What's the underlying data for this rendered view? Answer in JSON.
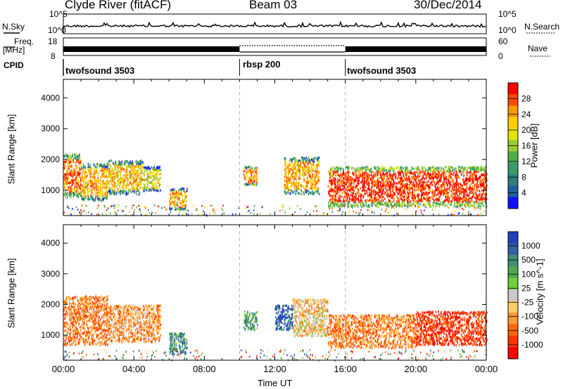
{
  "header": {
    "station": "Clyde River (fitACF)",
    "beam": "Beam 03",
    "date": "30/Dec/2014"
  },
  "strips": {
    "nsky_label": "N.Sky",
    "nsearch_label": "N.Search",
    "nsky_ticks": [
      "10^5",
      "10^0"
    ],
    "nsearch_ticks": [
      "10^5",
      "10^0"
    ],
    "freq_label_line1": "Freq.",
    "freq_label_line2": "[MHz]",
    "freq_ticks": [
      "18",
      "8"
    ],
    "nave_label": "Nave",
    "nave_ticks": [
      "60",
      "0"
    ],
    "cpid_label": "CPID",
    "cpid_segments": [
      "twofsound 3503",
      "rbsp 200",
      "twofsound 3503"
    ],
    "cpid_boundaries_hours": [
      0,
      10,
      16,
      24
    ]
  },
  "time_axis": {
    "label": "Time UT",
    "ticks": [
      "00:00",
      "04:00",
      "08:00",
      "12:00",
      "16:00",
      "20:00",
      "00:00"
    ]
  },
  "chart_data": [
    {
      "type": "heatmap",
      "name": "Power",
      "title": "",
      "xlabel": "Time UT",
      "ylabel": "Slant Range [km]",
      "colorbar_label": "Power [dB]",
      "xlim": [
        0,
        24
      ],
      "ylim": [
        180,
        4600
      ],
      "y_ticks": [
        1000,
        2000,
        3000,
        4000
      ],
      "colorbar_ticks": [
        "28",
        "24",
        "20",
        "16",
        "12",
        "8",
        "4"
      ],
      "colorbar_colors": [
        "#ff0000",
        "#ff4a00",
        "#ff9900",
        "#ffcc00",
        "#e4e400",
        "#9acd32",
        "#4daf4a",
        "#3a9a6a",
        "#2f7f7f",
        "#1f5f9f",
        "#1010ff"
      ],
      "regions": [
        {
          "t": [
            0.0,
            1.0
          ],
          "r": [
            800,
            2200
          ],
          "level": 0.85
        },
        {
          "t": [
            1.0,
            2.5
          ],
          "r": [
            700,
            1900
          ],
          "level": 0.75
        },
        {
          "t": [
            2.5,
            4.5
          ],
          "r": [
            900,
            2000
          ],
          "level": 0.7
        },
        {
          "t": [
            4.5,
            5.5
          ],
          "r": [
            1000,
            1800
          ],
          "level": 0.6
        },
        {
          "t": [
            6.0,
            7.0
          ],
          "r": [
            400,
            1100
          ],
          "level": 0.7
        },
        {
          "t": [
            10.2,
            11.0
          ],
          "r": [
            1200,
            1800
          ],
          "level": 0.8
        },
        {
          "t": [
            12.5,
            14.5
          ],
          "r": [
            900,
            2100
          ],
          "level": 0.75
        },
        {
          "t": [
            15.0,
            24.0
          ],
          "r": [
            500,
            1800
          ],
          "level": 0.95
        }
      ]
    },
    {
      "type": "heatmap",
      "name": "Velocity",
      "title": "",
      "xlabel": "Time UT",
      "ylabel": "Slant Range [km]",
      "colorbar_label": "Velocity [m s^-1]",
      "xlim": [
        0,
        24
      ],
      "ylim": [
        180,
        4600
      ],
      "y_ticks": [
        1000,
        2000,
        3000,
        4000
      ],
      "colorbar_ticks": [
        "1000",
        "500",
        "100",
        "25",
        "-25",
        "-100",
        "-500",
        "-1000"
      ],
      "colorbar_colors": [
        "#2040c0",
        "#3060a0",
        "#3f8f6f",
        "#4fa84f",
        "#6fcf3f",
        "#c8c8c8",
        "#ffcc66",
        "#ff9933",
        "#ff6600",
        "#ff3300",
        "#ff0000"
      ],
      "regions": [
        {
          "t": [
            0.0,
            2.5
          ],
          "r": [
            700,
            2300
          ],
          "level": -0.5
        },
        {
          "t": [
            2.5,
            5.5
          ],
          "r": [
            800,
            2000
          ],
          "level": -0.4
        },
        {
          "t": [
            6.0,
            7.0
          ],
          "r": [
            400,
            1100
          ],
          "level": 0.6
        },
        {
          "t": [
            10.2,
            11.0
          ],
          "r": [
            1200,
            1800
          ],
          "level": 0.5
        },
        {
          "t": [
            12.0,
            13.0
          ],
          "r": [
            1200,
            2000
          ],
          "level": 0.9
        },
        {
          "t": [
            13.0,
            15.0
          ],
          "r": [
            1000,
            2200
          ],
          "level": -0.2
        },
        {
          "t": [
            15.0,
            20.0
          ],
          "r": [
            600,
            1700
          ],
          "level": -0.5
        },
        {
          "t": [
            20.0,
            24.0
          ],
          "r": [
            700,
            1800
          ],
          "level": -0.8
        }
      ]
    }
  ]
}
